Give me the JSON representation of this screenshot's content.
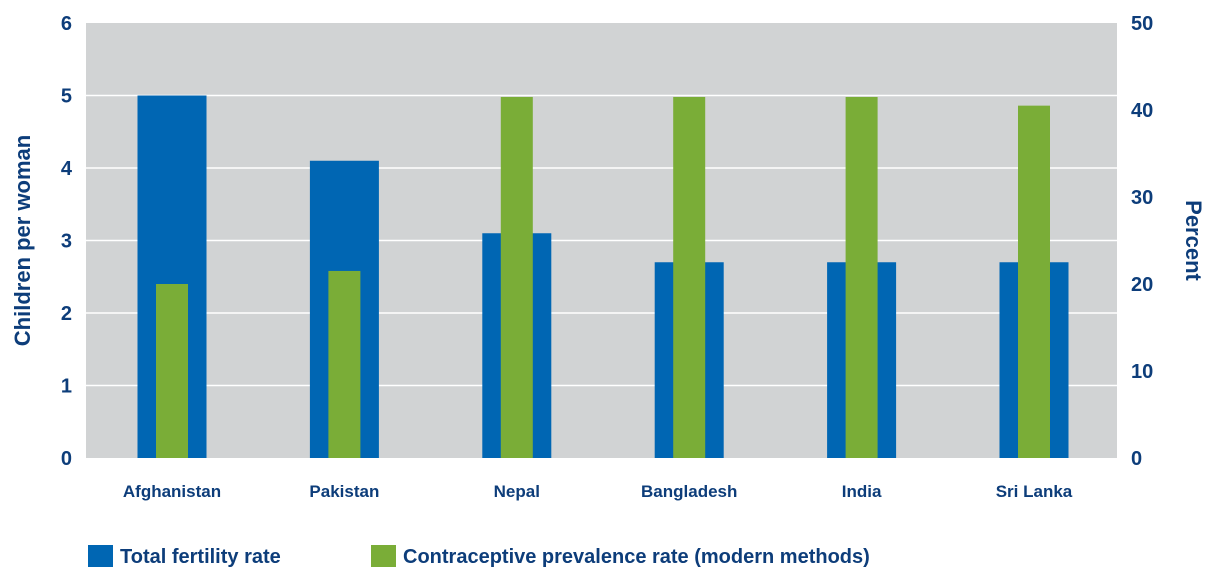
{
  "chart_data": {
    "type": "bar",
    "categories": [
      "Afghanistan",
      "Pakistan",
      "Nepal",
      "Bangladesh",
      "India",
      "Sri Lanka"
    ],
    "series": [
      {
        "name": "Total fertility rate",
        "axis": "left",
        "color": "#0066b3",
        "values": [
          5.0,
          4.1,
          3.1,
          2.7,
          2.7,
          2.7
        ]
      },
      {
        "name": "Contraceptive prevalence rate (modern methods)",
        "axis": "right",
        "color": "#7aad37",
        "values": [
          20,
          21.5,
          41.5,
          41.5,
          41.5,
          40.5
        ]
      }
    ],
    "ylabel": "Children per woman",
    "ylabel_right": "Percent",
    "ylim": [
      0,
      6
    ],
    "ylim_right": [
      0,
      50
    ],
    "yticks": [
      "0",
      "1",
      "2",
      "3",
      "4",
      "5",
      "6"
    ],
    "yticks_right": [
      "0",
      "10",
      "20",
      "30",
      "40",
      "50"
    ],
    "grid": true,
    "plot_background": "#d1d3d4",
    "text_color": "#0d3d7a",
    "legend_position": "bottom-left"
  }
}
